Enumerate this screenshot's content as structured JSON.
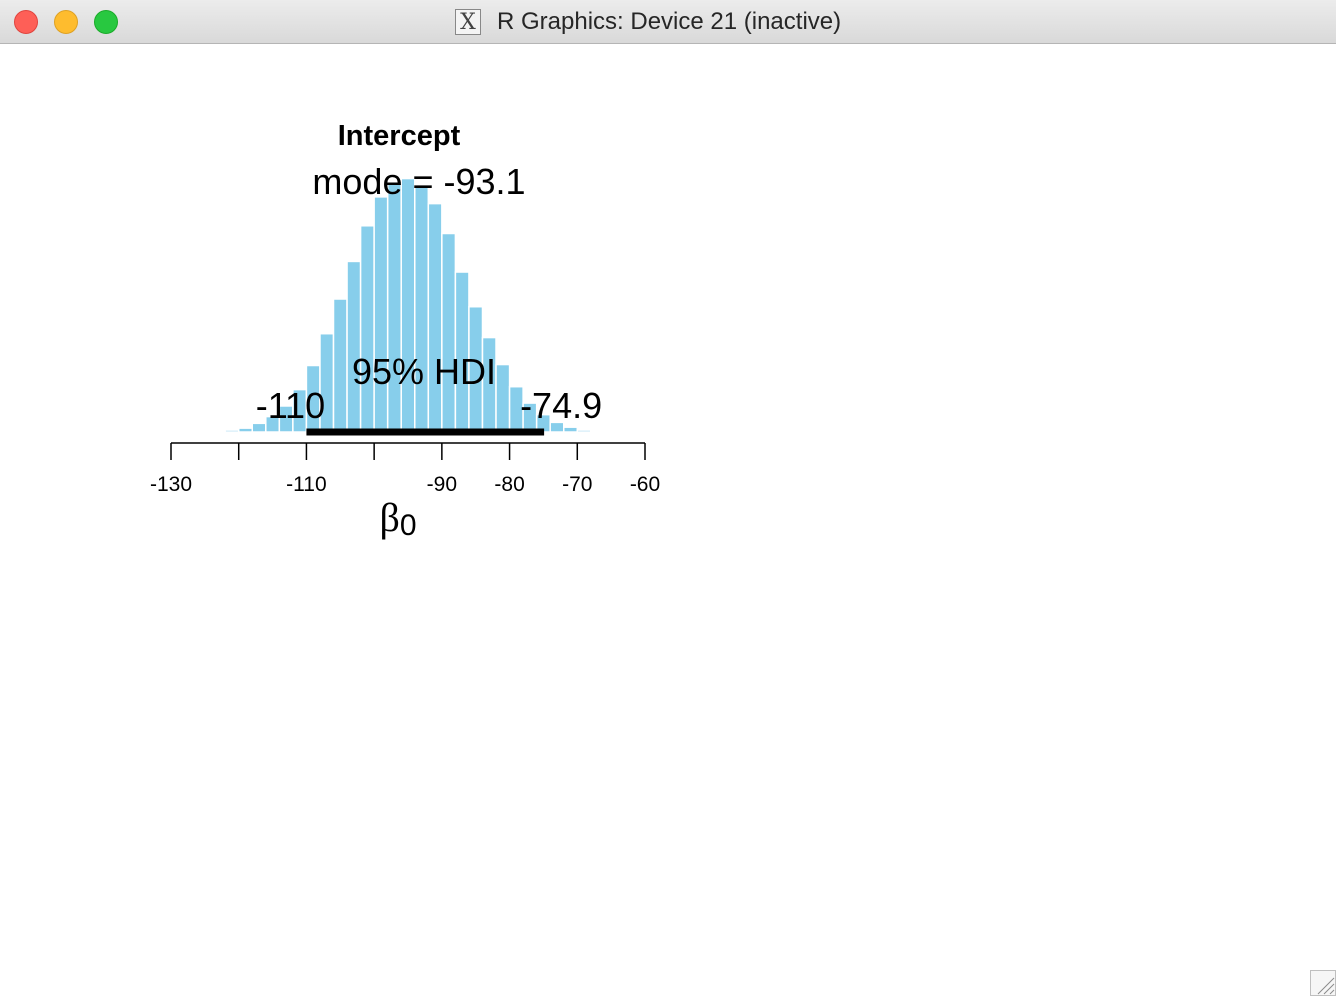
{
  "window": {
    "title": "R Graphics: Device 21 (inactive)",
    "icon": "x11-icon",
    "controls": [
      "close",
      "minimize",
      "zoom"
    ]
  },
  "chart_data": {
    "type": "bar",
    "title": "Intercept",
    "xlabel": "β0",
    "xlabel_base": "β",
    "xlabel_sub": "0",
    "xlim": [
      -130,
      -60
    ],
    "x_ticks": [
      -130,
      -120,
      -110,
      -100,
      -90,
      -80,
      -70,
      -60
    ],
    "x_tick_labels": [
      "-130",
      "",
      "-110",
      "",
      "-90",
      "-80",
      "-70",
      "-60"
    ],
    "bin_width": 2,
    "bin_starts": [
      -124,
      -122,
      -120,
      -118,
      -116,
      -114,
      -112,
      -110,
      -108,
      -106,
      -104,
      -102,
      -100,
      -98,
      -96,
      -94,
      -92,
      -90,
      -88,
      -86,
      -84,
      -82,
      -80,
      -78,
      -76,
      -74,
      -72,
      -70,
      -68
    ],
    "values": [
      0.001,
      0.002,
      0.004,
      0.009,
      0.016,
      0.027,
      0.044,
      0.069,
      0.102,
      0.138,
      0.177,
      0.214,
      0.244,
      0.259,
      0.263,
      0.255,
      0.237,
      0.206,
      0.166,
      0.13,
      0.098,
      0.07,
      0.047,
      0.03,
      0.018,
      0.01,
      0.005,
      0.002,
      0.001
    ],
    "ylim": [
      0,
      0.275
    ],
    "bar_color": "#87ceeb",
    "mode_label": "mode = -93.1",
    "hdi": {
      "label": "95% HDI",
      "low": -110,
      "high": -74.9,
      "low_label": "-110",
      "high_label": "-74.9",
      "color": "#000000"
    }
  }
}
